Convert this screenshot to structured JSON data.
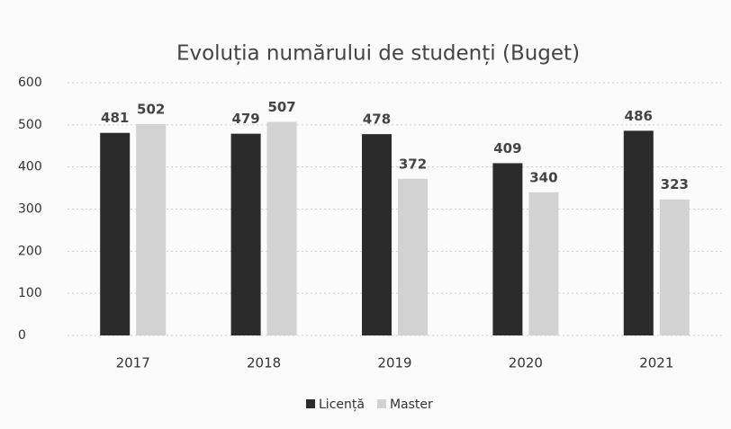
{
  "chart_data": {
    "type": "bar",
    "title": "Evoluția numărului de studenți (Buget)",
    "categories": [
      "2017",
      "2018",
      "2019",
      "2020",
      "2021"
    ],
    "series": [
      {
        "name": "Licență",
        "color": "#2b2b2b",
        "values": [
          481,
          479,
          478,
          409,
          486
        ]
      },
      {
        "name": "Master",
        "color": "#d2d2d2",
        "values": [
          502,
          507,
          372,
          340,
          323
        ]
      }
    ],
    "ylim": [
      0,
      600
    ],
    "yticks": [
      0,
      100,
      200,
      300,
      400,
      500,
      600
    ],
    "grid": true,
    "legend": "bottom"
  }
}
